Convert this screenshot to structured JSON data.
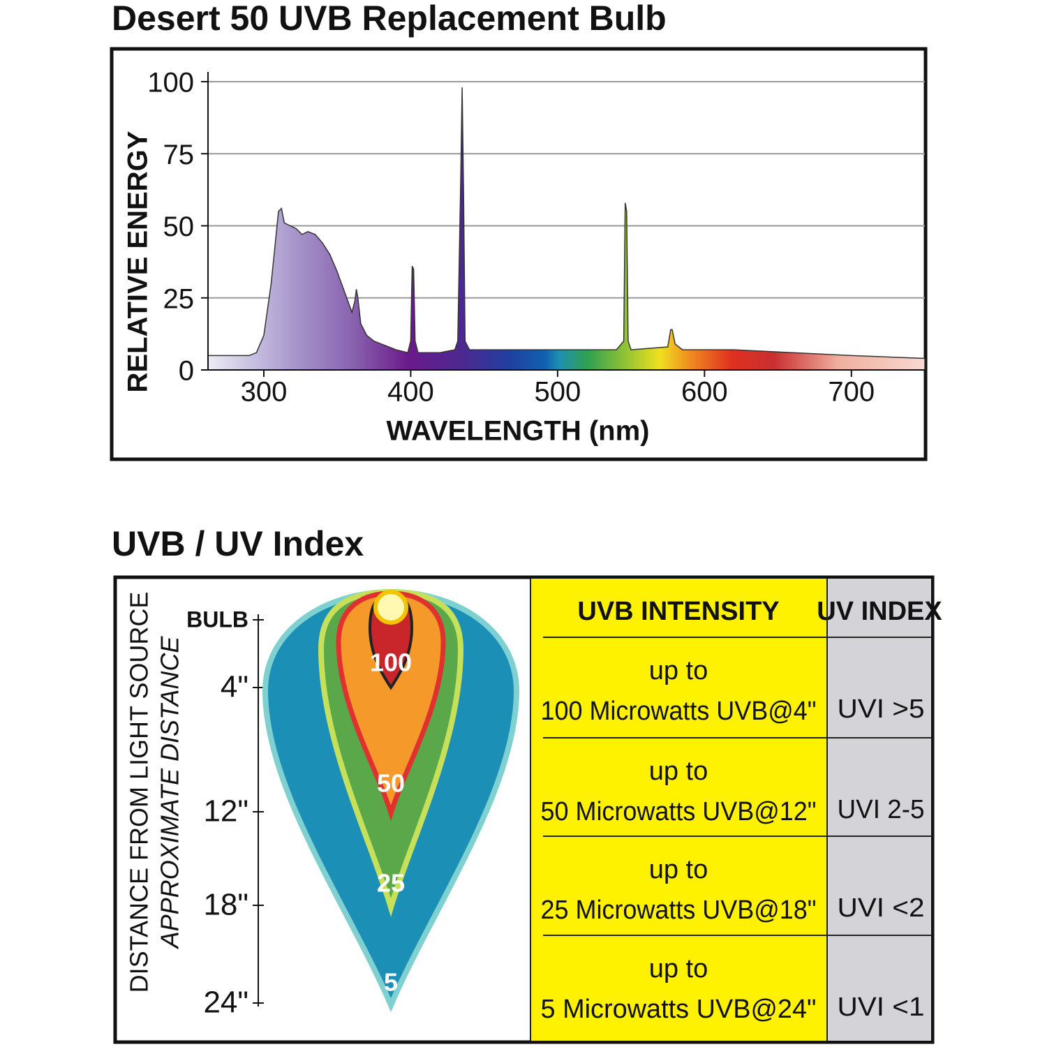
{
  "chart_data": {
    "type": "area",
    "title": "Desert 50 UVB Replacement Bulb",
    "xlabel": "WAVELENGTH (nm)",
    "ylabel": "RELATIVE ENERGY",
    "x": [
      262,
      290,
      295,
      300,
      305,
      308,
      310,
      312,
      314,
      318,
      322,
      326,
      330,
      335,
      340,
      345,
      350,
      355,
      360,
      362,
      363,
      364,
      366,
      370,
      375,
      380,
      390,
      398,
      400,
      401,
      402,
      403,
      405,
      420,
      430,
      432,
      434,
      435,
      436,
      437,
      440,
      500,
      540,
      545,
      546,
      547,
      548,
      550,
      575,
      577,
      578,
      580,
      585,
      620,
      660,
      700,
      750
    ],
    "values": [
      5,
      5,
      6,
      12,
      30,
      45,
      55,
      56,
      51,
      50,
      49,
      47,
      48,
      47,
      44,
      40,
      34,
      27,
      20,
      24,
      28,
      25,
      16,
      12,
      10,
      9,
      7,
      6,
      10,
      36,
      35,
      10,
      6,
      6,
      7,
      10,
      65,
      98,
      60,
      10,
      7,
      7,
      7,
      10,
      58,
      55,
      10,
      7,
      8,
      14,
      14,
      9,
      7,
      7,
      6,
      5,
      4
    ],
    "xlim": [
      262,
      750
    ],
    "ylim": [
      0,
      100
    ],
    "xticks": [
      300,
      400,
      500,
      600,
      700
    ],
    "yticks": [
      0,
      25,
      50,
      75,
      100
    ],
    "grid": true
  },
  "uv_index": {
    "title": "UVB / UV Index",
    "axis_label": "DISTANCE FROM LIGHT SOURCE",
    "axis_sublabel": "APPROXIMATE DISTANCE",
    "distance_ticks": [
      "BULB",
      "4\"",
      "12\"",
      "18\"",
      "24\""
    ],
    "zones": [
      "100",
      "50",
      "25",
      "5"
    ],
    "table": {
      "headers": [
        "UVB INTENSITY",
        "UV INDEX"
      ],
      "rows": [
        [
          "up to",
          "100 Microwatts UVB@4\"",
          "UVI >5"
        ],
        [
          "up to",
          "50 Microwatts UVB@12\"",
          "UVI 2-5"
        ],
        [
          "up to",
          "25 Microwatts UVB@18\"",
          "UVI <2"
        ],
        [
          "up to",
          "5 Microwatts UVB@24\"",
          "UVI <1"
        ]
      ]
    }
  }
}
